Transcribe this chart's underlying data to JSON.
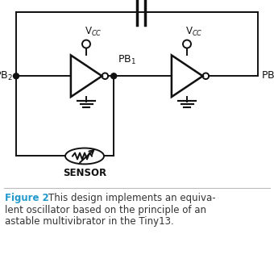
{
  "title": "Figure 2",
  "caption": "This design implements an equiva-\nlent oscillator based on the principle of an\nastable multivibrator in the Tiny13.",
  "title_color": "#2299cc",
  "caption_color": "#333333",
  "bg_color": "#ffffff",
  "line_color": "#111111",
  "fig_width": 3.4,
  "fig_height": 3.26,
  "dpi": 100
}
